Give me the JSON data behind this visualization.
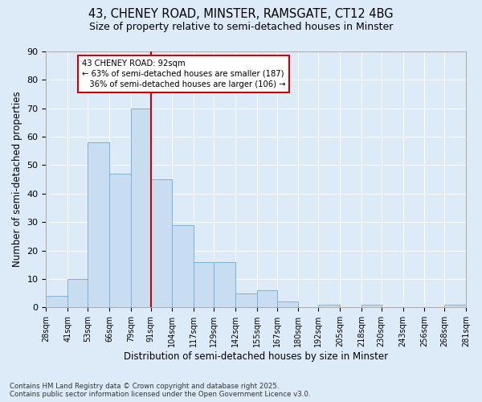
{
  "title_line1": "43, CHENEY ROAD, MINSTER, RAMSGATE, CT12 4BG",
  "title_line2": "Size of property relative to semi-detached houses in Minster",
  "xlabel": "Distribution of semi-detached houses by size in Minster",
  "ylabel": "Number of semi-detached properties",
  "bins": [
    28,
    41,
    53,
    66,
    79,
    91,
    104,
    117,
    129,
    142,
    155,
    167,
    180,
    192,
    205,
    218,
    230,
    243,
    256,
    268,
    281
  ],
  "counts": [
    4,
    10,
    58,
    47,
    70,
    45,
    29,
    16,
    16,
    5,
    6,
    2,
    0,
    1,
    0,
    1,
    0,
    0,
    0,
    1
  ],
  "bar_color": "#c9ddf0",
  "bar_edge_color": "#7ab3d9",
  "vline_x": 91,
  "vline_color": "#cc0000",
  "annotation_line1": "43 CHENEY ROAD: 92sqm",
  "annotation_line2": "← 63% of semi-detached houses are smaller (187)",
  "annotation_line3": "   36% of semi-detached houses are larger (106) →",
  "annotation_box_color": "#ffffff",
  "annotation_border_color": "#cc0000",
  "ylim": [
    0,
    90
  ],
  "yticks": [
    0,
    10,
    20,
    30,
    40,
    50,
    60,
    70,
    80,
    90
  ],
  "footer_line1": "Contains HM Land Registry data © Crown copyright and database right 2025.",
  "footer_line2": "Contains public sector information licensed under the Open Government Licence v3.0.",
  "bg_color": "#ddeaf7",
  "plot_bg_color": "#ddeaf7",
  "fig_width": 6.0,
  "fig_height": 5.0
}
